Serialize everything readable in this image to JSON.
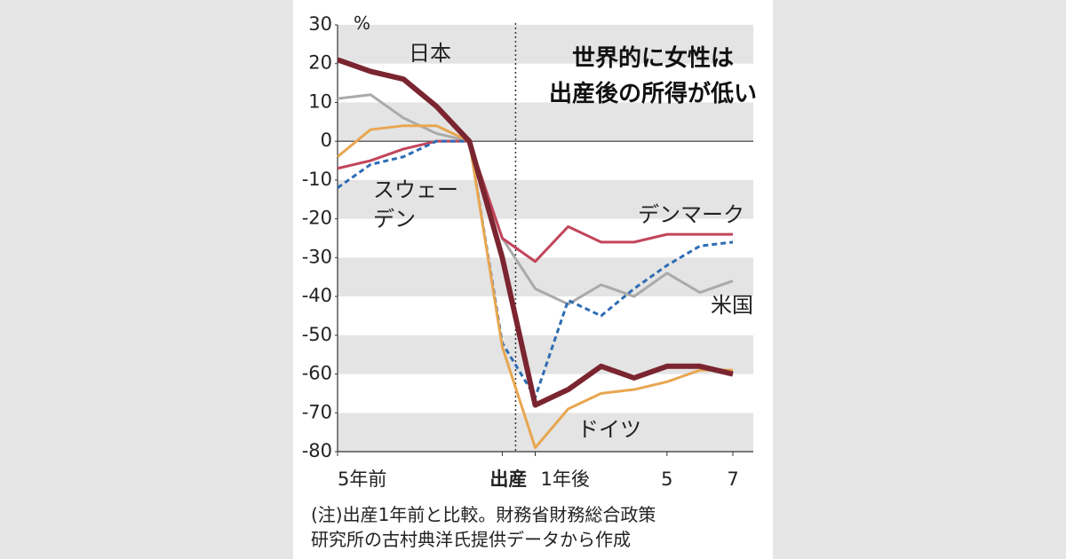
{
  "chart_data": {
    "type": "line",
    "title": "世界的に女性は\n出産後の所得が低い",
    "y_unit": "%",
    "note": "(注)出産1年前と比較。財務省財務総合政策\n研究所の古村典洋氏提供データから作成",
    "x": [
      -5,
      -4,
      -3,
      -2,
      -1,
      0,
      1,
      2,
      3,
      4,
      5,
      6,
      7
    ],
    "xlim": [
      -5,
      7
    ],
    "xticks": [
      {
        "value": -5,
        "label": "5年前"
      },
      {
        "value": 0,
        "label": "出産"
      },
      {
        "value": 1,
        "label": "1年後"
      },
      5,
      7
    ],
    "ylim": [
      -80,
      30
    ],
    "yticks": [
      30,
      20,
      10,
      0,
      -10,
      -20,
      -30,
      -40,
      -50,
      -60,
      -70,
      -80
    ],
    "series": [
      {
        "name": "米国",
        "color": "#aaaaaa",
        "values": [
          11,
          12,
          6,
          2,
          0,
          -25,
          -38,
          -42,
          -37,
          -40,
          -34,
          -39,
          -36
        ]
      },
      {
        "name": "デンマーク",
        "color": "#c2455a",
        "values": [
          -7,
          -5,
          -2,
          0,
          0,
          -25,
          -31,
          -22,
          -26,
          -26,
          -24,
          -24,
          -24
        ]
      },
      {
        "name": "スウェー\nデン",
        "color": "#2e6db4",
        "dashed": true,
        "values": [
          -12,
          -6,
          -4,
          0,
          0,
          -52,
          -66,
          -41,
          -45,
          -38,
          -32,
          -27,
          -26
        ]
      },
      {
        "name": "ドイツ",
        "color": "#e8a650",
        "values": [
          -4,
          3,
          4,
          4,
          0,
          -53,
          -79,
          -69,
          -65,
          -64,
          -62,
          -59,
          -59
        ]
      },
      {
        "name": "日本",
        "color": "#7a2530",
        "thick": true,
        "values": [
          21,
          18,
          16,
          9,
          0,
          -30,
          -68,
          -64,
          -58,
          -61,
          -58,
          -58,
          -60
        ]
      }
    ]
  }
}
